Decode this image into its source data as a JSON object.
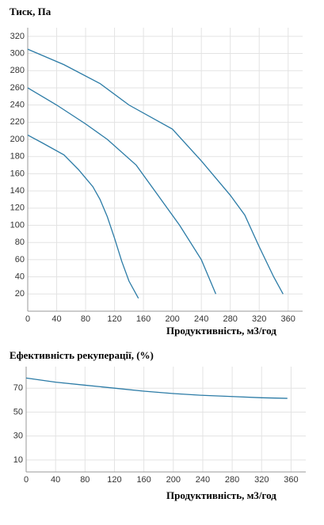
{
  "chart_data": [
    {
      "type": "line",
      "title": "Тиск, Па",
      "x_label": "Продуктивність, м3/год",
      "xlim": [
        0,
        380
      ],
      "ylim": [
        0,
        330
      ],
      "xticks": [
        0,
        40,
        80,
        120,
        160,
        200,
        240,
        280,
        320,
        360
      ],
      "yticks": [
        20,
        40,
        60,
        80,
        100,
        120,
        140,
        160,
        180,
        200,
        220,
        240,
        260,
        280,
        300,
        320
      ],
      "grid": true,
      "series": [
        {
          "color": "#2b7ba6",
          "x": [
            0,
            20,
            50,
            70,
            90,
            100,
            110,
            120,
            130,
            140,
            153
          ],
          "values": [
            205,
            196,
            182,
            165,
            145,
            130,
            110,
            85,
            58,
            35,
            15
          ]
        },
        {
          "color": "#2b7ba6",
          "x": [
            0,
            40,
            80,
            110,
            150,
            180,
            210,
            240,
            260
          ],
          "values": [
            260,
            240,
            218,
            200,
            170,
            135,
            100,
            60,
            20
          ]
        },
        {
          "color": "#2b7ba6",
          "x": [
            0,
            50,
            100,
            140,
            200,
            240,
            280,
            300,
            320,
            340,
            353
          ],
          "values": [
            305,
            287,
            265,
            240,
            212,
            175,
            135,
            112,
            75,
            40,
            20
          ]
        }
      ]
    },
    {
      "type": "line",
      "title": "Ефективність рекуперації, (%)",
      "x_label": "Продуктивність, м3/год",
      "xlim": [
        0,
        380
      ],
      "ylim": [
        0,
        88
      ],
      "xticks": [
        0,
        40,
        80,
        120,
        160,
        200,
        240,
        280,
        320,
        360
      ],
      "yticks": [
        10,
        30,
        50,
        70
      ],
      "grid": true,
      "series": [
        {
          "color": "#2b7ba6",
          "x": [
            0,
            40,
            80,
            120,
            160,
            200,
            240,
            280,
            320,
            355
          ],
          "values": [
            78.5,
            75,
            72.5,
            70,
            67.5,
            65.5,
            64,
            63,
            62,
            61.5
          ]
        }
      ]
    }
  ]
}
